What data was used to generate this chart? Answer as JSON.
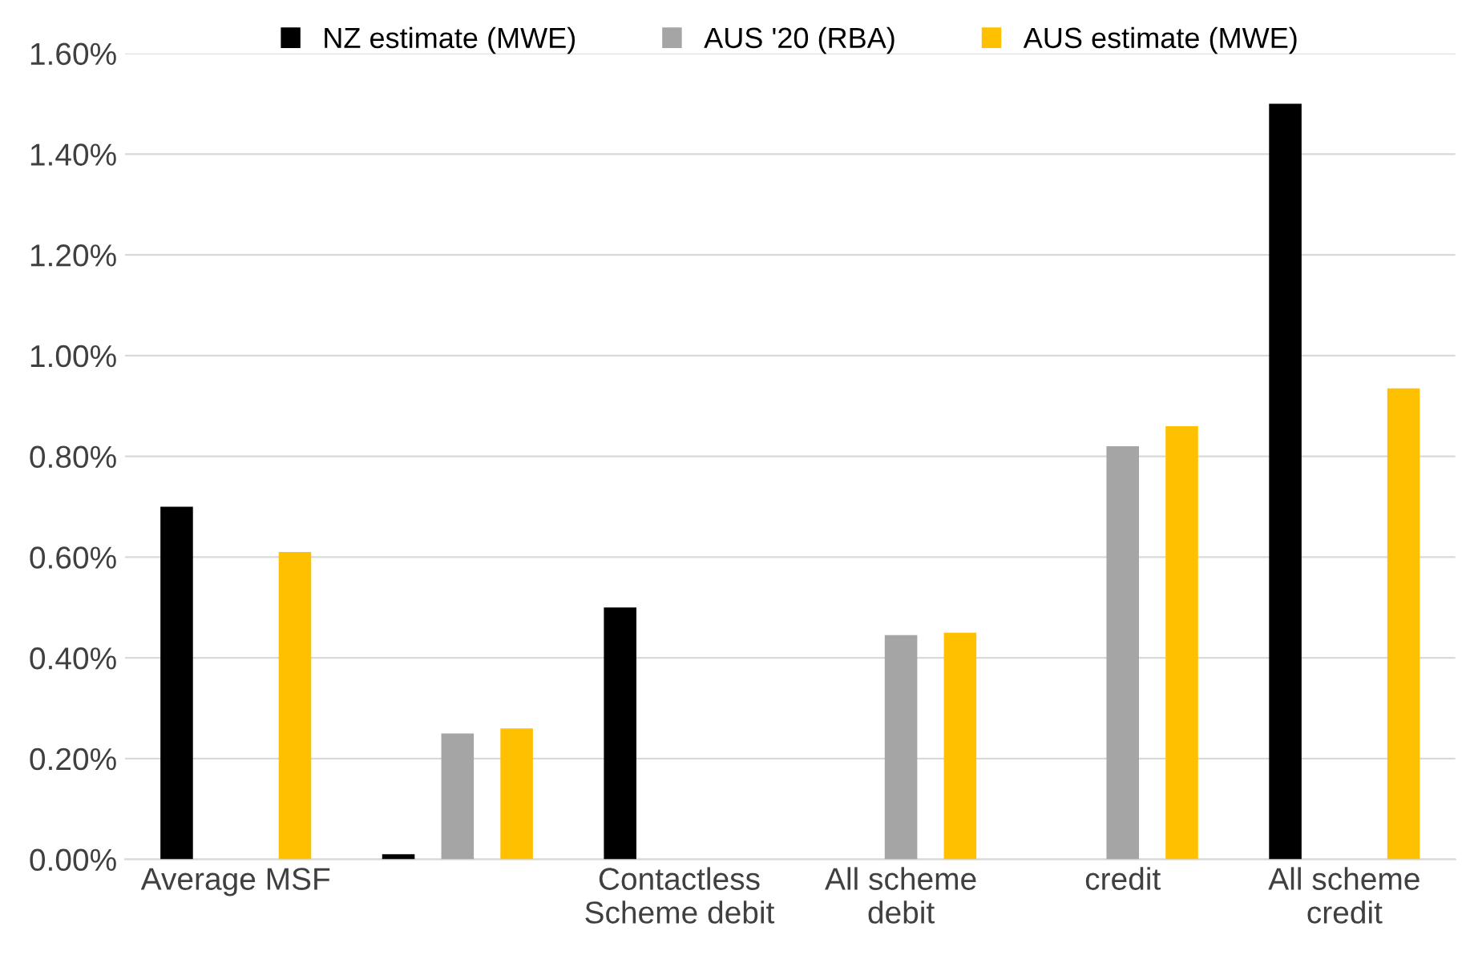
{
  "chart_data": {
    "type": "bar",
    "categories": [
      "Average MSF",
      null,
      "Contactless\nScheme debit",
      "All scheme\ndebit",
      "credit",
      "All scheme\ncredit"
    ],
    "series": [
      {
        "name": "NZ estimate (MWE)",
        "color": "#000000",
        "values": [
          0.7,
          0.01,
          0.5,
          null,
          null,
          1.5
        ]
      },
      {
        "name": "AUS '20 (RBA)",
        "color": "#a5a5a5",
        "values": [
          null,
          0.25,
          null,
          0.445,
          0.82,
          null
        ]
      },
      {
        "name": "AUS estimate (MWE)",
        "color": "#ffc000",
        "values": [
          0.61,
          0.26,
          null,
          0.45,
          0.86,
          0.935
        ]
      }
    ],
    "ylim": [
      0,
      1.6
    ],
    "yticks": [
      {
        "value": 0,
        "label": "0.00%"
      },
      {
        "value": 0.2,
        "label": "0.20%"
      },
      {
        "value": 0.4,
        "label": "0.40%"
      },
      {
        "value": 0.6,
        "label": "0.60%"
      },
      {
        "value": 0.8,
        "label": "0.80%"
      },
      {
        "value": 1.0,
        "label": "1.00%"
      },
      {
        "value": 1.2,
        "label": "1.20%"
      },
      {
        "value": 1.4,
        "label": "1.40%"
      },
      {
        "value": 1.6,
        "label": "1.60%"
      }
    ],
    "grid": "y",
    "legend": "top"
  }
}
